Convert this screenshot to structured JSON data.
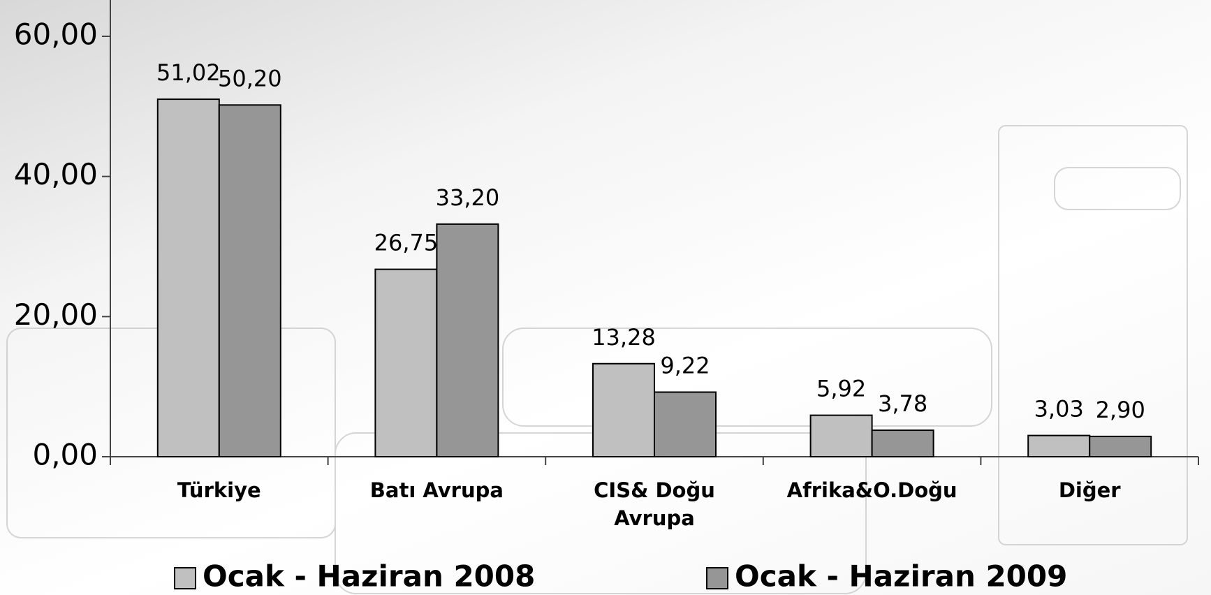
{
  "chart_data": {
    "type": "bar",
    "categories": [
      "Türkiye",
      "Batı Avrupa",
      "CIS& Doğu Avrupa",
      "Afrika&O.Doğu",
      "Diğer"
    ],
    "series": [
      {
        "name": "Ocak - Haziran 2008",
        "color": "#c0c0c0",
        "values": [
          51.02,
          26.75,
          13.28,
          5.92,
          3.03
        ],
        "value_labels": [
          "51,02",
          "26,75",
          "13,28",
          "5,92",
          "3,03"
        ]
      },
      {
        "name": "Ocak - Haziran 2009",
        "color": "#969696",
        "values": [
          50.2,
          33.2,
          9.22,
          3.78,
          2.9
        ],
        "value_labels": [
          "50,20",
          "33,20",
          "9,22",
          "3,78",
          "2,90"
        ]
      }
    ],
    "ylim": [
      0,
      60
    ],
    "yticks": [
      {
        "value": 0,
        "label": "0,00"
      },
      {
        "value": 20,
        "label": "20,00"
      },
      {
        "value": 40,
        "label": "40,00"
      },
      {
        "value": 60,
        "label": "60,00"
      }
    ],
    "grid": false,
    "legend": "bottom"
  }
}
